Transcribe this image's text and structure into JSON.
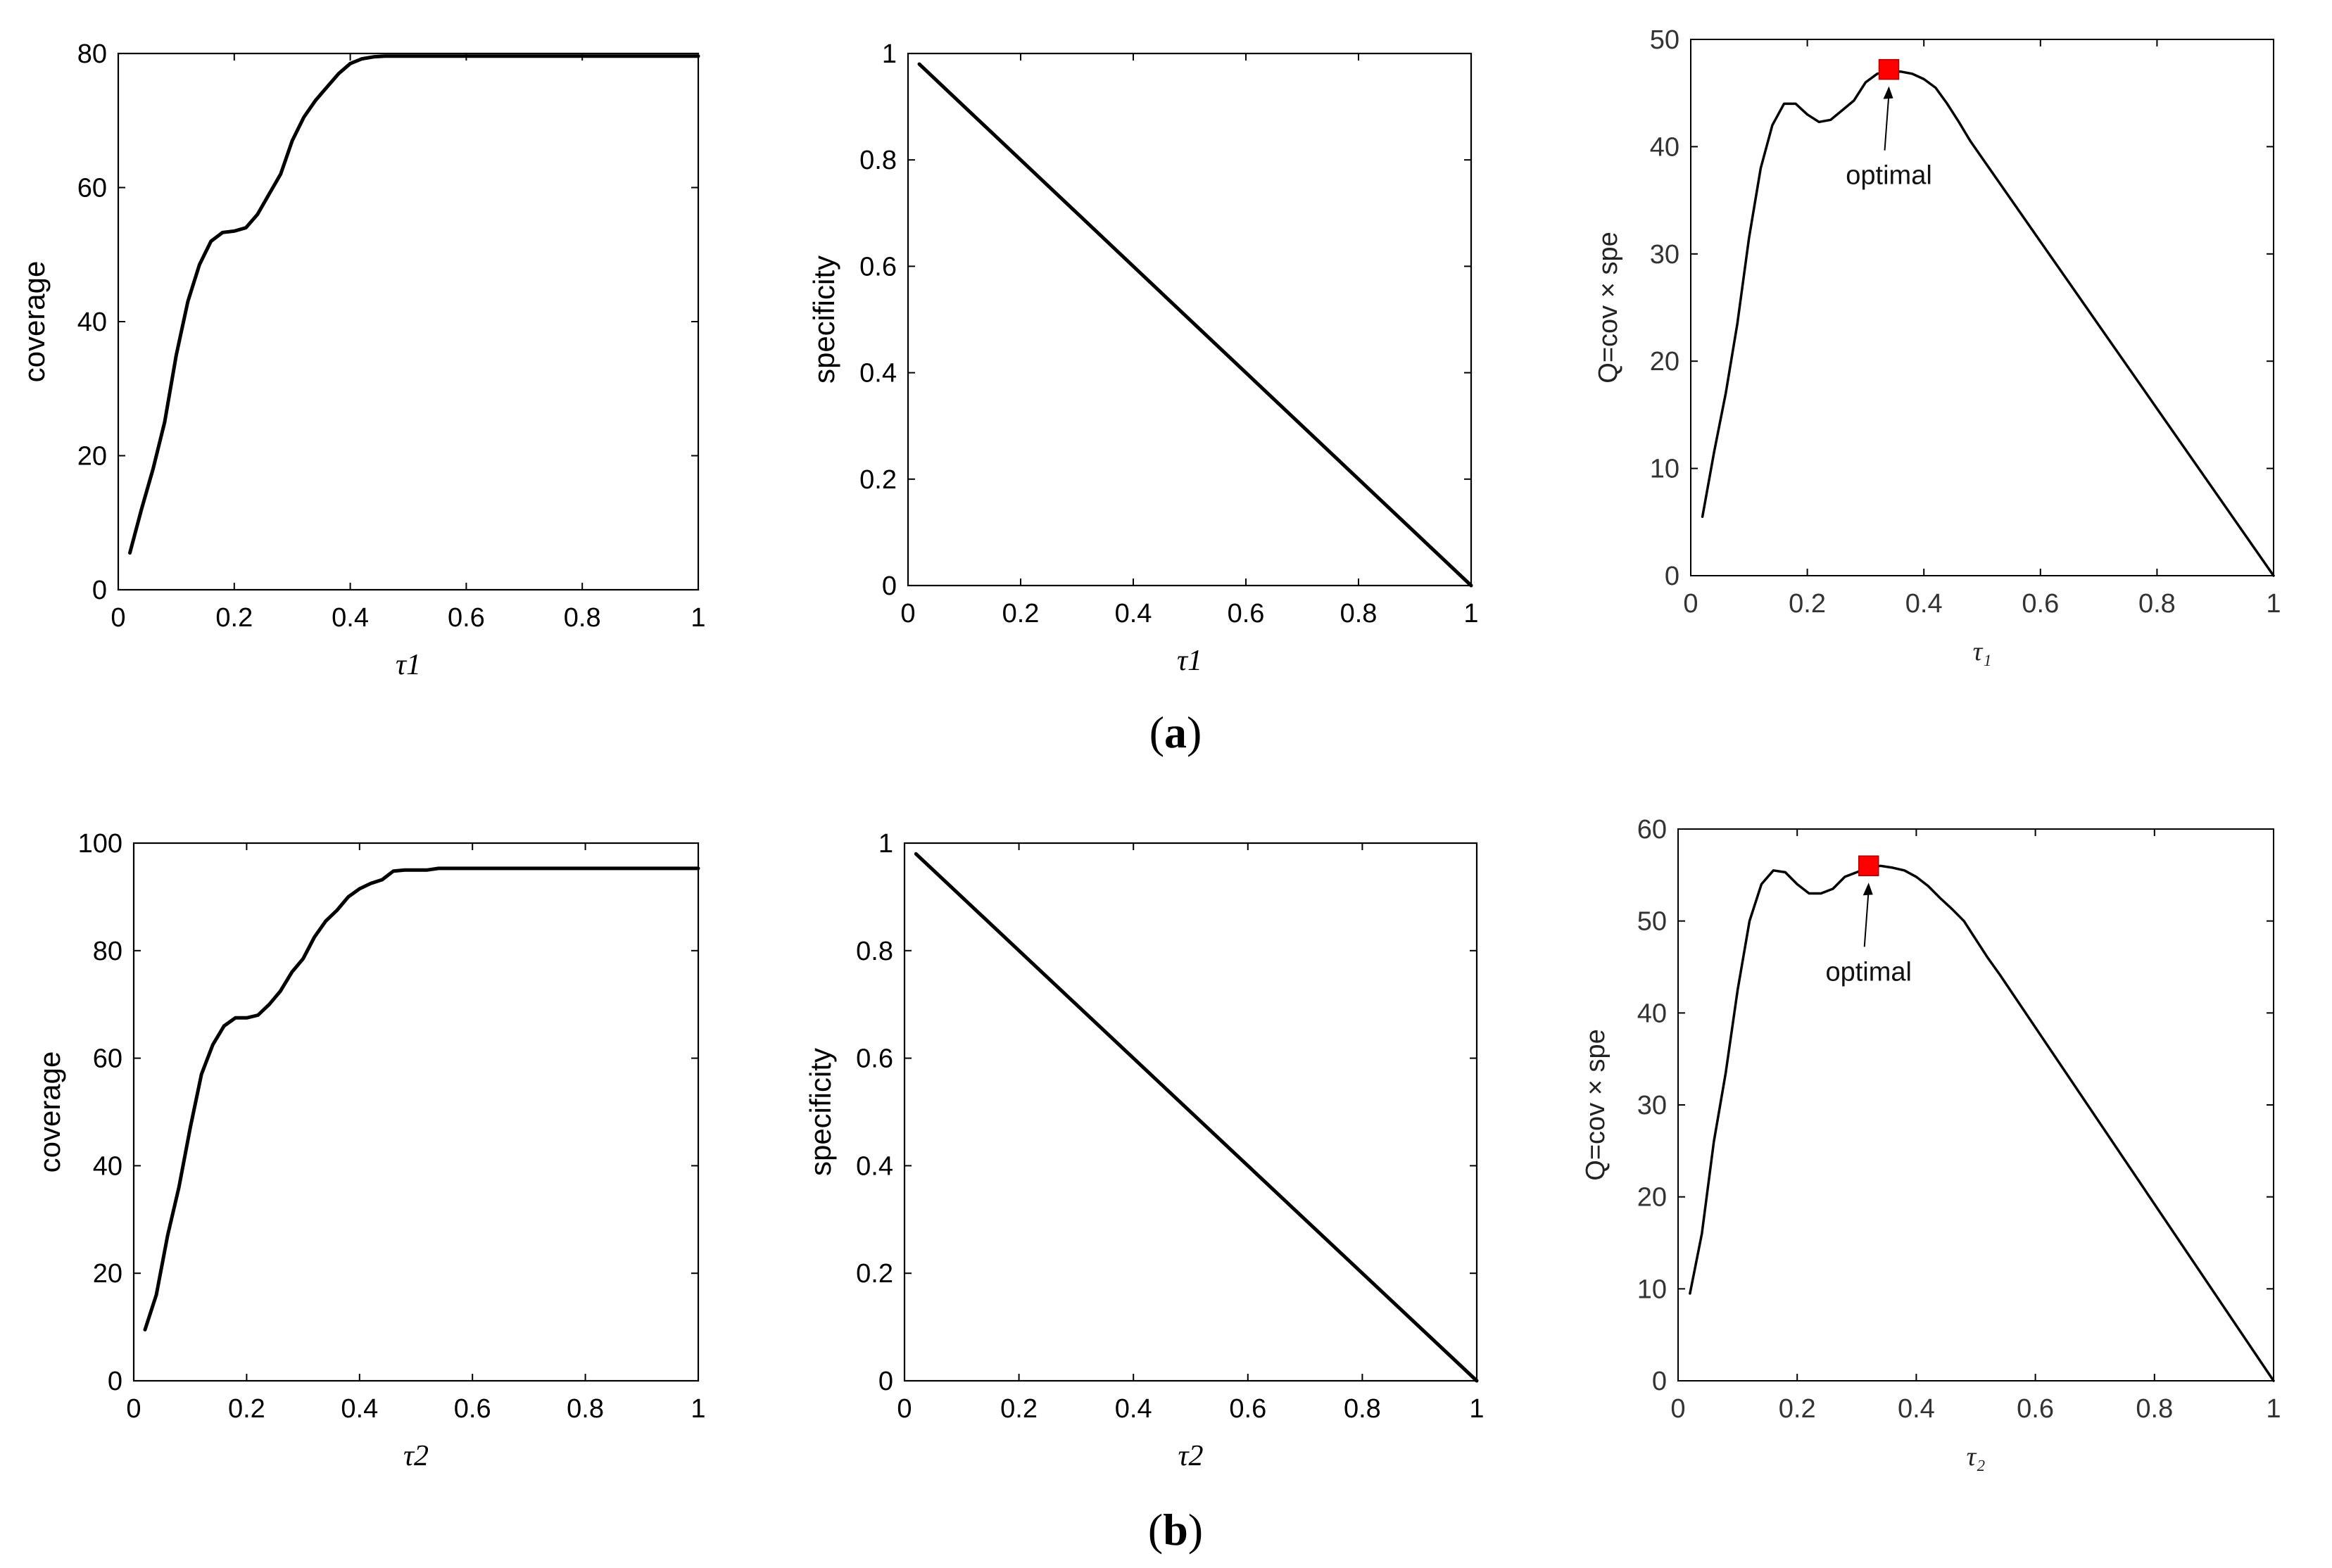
{
  "figure": {
    "panel_labels": [
      {
        "open": "(",
        "letter": "a",
        "close": ")"
      },
      {
        "open": "(",
        "letter": "b",
        "close": ")"
      }
    ]
  },
  "chart_data": [
    {
      "type": "line",
      "row": "a",
      "style": "matlab-bold",
      "xlabel": "τ1",
      "ylabel": "coverage",
      "xlim": [
        0,
        1
      ],
      "ylim": [
        0,
        80
      ],
      "xticks": [
        0,
        0.2,
        0.4,
        0.6,
        0.8,
        1
      ],
      "xtick_labels": [
        "0",
        "0.2",
        "0.4",
        "0.6",
        "0.8",
        "1"
      ],
      "yticks": [
        0,
        20,
        40,
        60,
        80
      ],
      "ytick_labels": [
        "0",
        "20",
        "40",
        "60",
        "80"
      ],
      "series": [
        {
          "line_color": "#000000",
          "x": [
            0.02,
            0.04,
            0.06,
            0.08,
            0.1,
            0.12,
            0.14,
            0.16,
            0.18,
            0.2,
            0.22,
            0.24,
            0.26,
            0.28,
            0.3,
            0.32,
            0.34,
            0.36,
            0.38,
            0.4,
            0.42,
            0.44,
            0.46,
            0.48,
            0.5,
            0.55,
            0.6,
            0.7,
            0.8,
            0.9,
            1.0
          ],
          "y": [
            5.5,
            12,
            18,
            25,
            35,
            43,
            48.5,
            52,
            53.3,
            53.5,
            54,
            56,
            59,
            62,
            67,
            70.5,
            73,
            75,
            77,
            78.5,
            79.2,
            79.5,
            79.6,
            79.6,
            79.6,
            79.6,
            79.6,
            79.6,
            79.6,
            79.6,
            79.6
          ]
        }
      ]
    },
    {
      "type": "line",
      "row": "a",
      "style": "matlab-bold",
      "xlabel": "τ1",
      "ylabel": "specificity",
      "xlim": [
        0,
        1
      ],
      "ylim": [
        0,
        1
      ],
      "xticks": [
        0,
        0.2,
        0.4,
        0.6,
        0.8,
        1
      ],
      "xtick_labels": [
        "0",
        "0.2",
        "0.4",
        "0.6",
        "0.8",
        "1"
      ],
      "yticks": [
        0,
        0.2,
        0.4,
        0.6,
        0.8,
        1
      ],
      "ytick_labels": [
        "0",
        "0.2",
        "0.4",
        "0.6",
        "0.8",
        "1"
      ],
      "series": [
        {
          "line_color": "#000000",
          "x": [
            0.02,
            1.0
          ],
          "y": [
            0.98,
            0.0
          ]
        }
      ]
    },
    {
      "type": "line",
      "row": "a",
      "style": "plain",
      "xlabel": "τ₁",
      "ylabel": "Q=cov × spe",
      "xlim": [
        0,
        1
      ],
      "ylim": [
        0,
        50
      ],
      "xticks": [
        0,
        0.2,
        0.4,
        0.6,
        0.8,
        1
      ],
      "xtick_labels": [
        "0",
        "0.2",
        "0.4",
        "0.6",
        "0.8",
        "1"
      ],
      "yticks": [
        0,
        10,
        20,
        30,
        40,
        50
      ],
      "ytick_labels": [
        "0",
        "10",
        "20",
        "30",
        "40",
        "50"
      ],
      "series": [
        {
          "line_color": "#000000",
          "x": [
            0.02,
            0.04,
            0.06,
            0.08,
            0.1,
            0.12,
            0.14,
            0.16,
            0.18,
            0.2,
            0.22,
            0.24,
            0.26,
            0.28,
            0.3,
            0.32,
            0.34,
            0.36,
            0.38,
            0.4,
            0.42,
            0.44,
            0.46,
            0.48,
            1.0
          ],
          "y": [
            5.5,
            11.5,
            17,
            23.5,
            31.5,
            38,
            42,
            44,
            44,
            43,
            42.3,
            42.5,
            43.4,
            44.3,
            46,
            46.8,
            47,
            47,
            46.8,
            46.3,
            45.5,
            44,
            42.3,
            40.5,
            0
          ]
        }
      ],
      "marker": {
        "x": 0.34,
        "y": 47.2,
        "color": "#ff0000"
      },
      "annotation": {
        "text": "optimal",
        "x": 0.34,
        "y": 47
      }
    },
    {
      "type": "line",
      "row": "b",
      "style": "matlab-bold",
      "xlabel": "τ2",
      "ylabel": "coverage",
      "xlim": [
        0,
        1
      ],
      "ylim": [
        0,
        100
      ],
      "xticks": [
        0,
        0.2,
        0.4,
        0.6,
        0.8,
        1
      ],
      "xtick_labels": [
        "0",
        "0.2",
        "0.4",
        "0.6",
        "0.8",
        "1"
      ],
      "yticks": [
        0,
        20,
        40,
        60,
        80,
        100
      ],
      "ytick_labels": [
        "0",
        "20",
        "40",
        "60",
        "80",
        "100"
      ],
      "series": [
        {
          "line_color": "#000000",
          "x": [
            0.02,
            0.04,
            0.06,
            0.08,
            0.1,
            0.12,
            0.14,
            0.16,
            0.18,
            0.2,
            0.22,
            0.24,
            0.26,
            0.28,
            0.3,
            0.32,
            0.34,
            0.36,
            0.38,
            0.4,
            0.42,
            0.44,
            0.46,
            0.48,
            0.5,
            0.52,
            0.54,
            0.6,
            0.7,
            0.8,
            0.9,
            1.0
          ],
          "y": [
            9.5,
            16,
            27,
            36,
            47,
            57,
            62.5,
            66,
            67.5,
            67.5,
            68,
            70,
            72.5,
            76,
            78.5,
            82.5,
            85.5,
            87.5,
            90,
            91.5,
            92.5,
            93.2,
            94.8,
            95,
            95,
            95,
            95.3,
            95.3,
            95.3,
            95.3,
            95.3,
            95.3
          ]
        }
      ]
    },
    {
      "type": "line",
      "row": "b",
      "style": "matlab-bold",
      "xlabel": "τ2",
      "ylabel": "specificity",
      "xlim": [
        0,
        1
      ],
      "ylim": [
        0,
        1
      ],
      "xticks": [
        0,
        0.2,
        0.4,
        0.6,
        0.8,
        1
      ],
      "xtick_labels": [
        "0",
        "0.2",
        "0.4",
        "0.6",
        "0.8",
        "1"
      ],
      "yticks": [
        0,
        0.2,
        0.4,
        0.6,
        0.8,
        1
      ],
      "ytick_labels": [
        "0",
        "0.2",
        "0.4",
        "0.6",
        "0.8",
        "1"
      ],
      "series": [
        {
          "line_color": "#000000",
          "x": [
            0.02,
            1.0
          ],
          "y": [
            0.98,
            0.0
          ]
        }
      ]
    },
    {
      "type": "line",
      "row": "b",
      "style": "plain",
      "xlabel": "τ₂",
      "ylabel": "Q=cov × spe",
      "xlim": [
        0,
        1
      ],
      "ylim": [
        0,
        60
      ],
      "xticks": [
        0,
        0.2,
        0.4,
        0.6,
        0.8,
        1
      ],
      "xtick_labels": [
        "0",
        "0.2",
        "0.4",
        "0.6",
        "0.8",
        "1"
      ],
      "yticks": [
        0,
        10,
        20,
        30,
        40,
        50,
        60
      ],
      "ytick_labels": [
        "0",
        "10",
        "20",
        "30",
        "40",
        "50",
        "60"
      ],
      "series": [
        {
          "line_color": "#000000",
          "x": [
            0.02,
            0.04,
            0.06,
            0.08,
            0.1,
            0.12,
            0.14,
            0.16,
            0.18,
            0.2,
            0.22,
            0.24,
            0.26,
            0.28,
            0.3,
            0.32,
            0.34,
            0.36,
            0.38,
            0.4,
            0.42,
            0.44,
            0.46,
            0.48,
            0.5,
            0.52,
            0.54,
            1.0
          ],
          "y": [
            9.5,
            16,
            26,
            33.5,
            42.5,
            50,
            54,
            55.5,
            55.3,
            54,
            53,
            53,
            53.5,
            54.8,
            55.3,
            55.8,
            56,
            55.8,
            55.5,
            54.8,
            53.8,
            52.5,
            51.3,
            50,
            48,
            46,
            44.2,
            0
          ]
        }
      ],
      "marker": {
        "x": 0.32,
        "y": 56,
        "color": "#ff0000"
      },
      "annotation": {
        "text": "optimal",
        "x": 0.32,
        "y": 55
      }
    }
  ]
}
